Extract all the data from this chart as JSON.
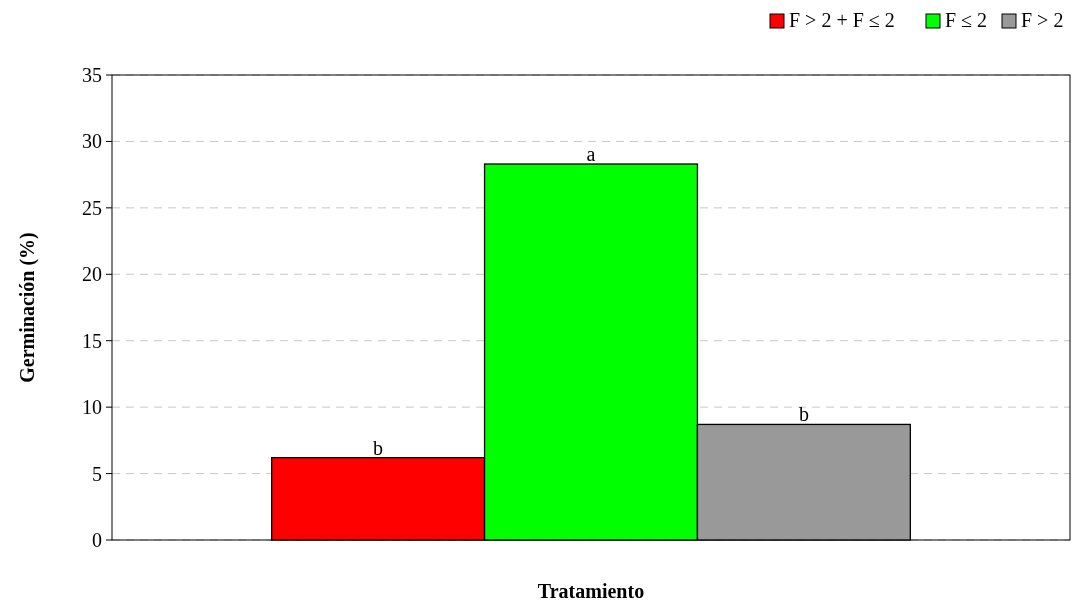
{
  "chart_data": {
    "type": "bar",
    "xlabel": "Tratamiento",
    "ylabel": "Germinación (%)",
    "categories": [
      null
    ],
    "series": [
      {
        "name": "F > 2 + F ≤ 2",
        "color": "#ff0000",
        "values": [
          6.2
        ],
        "value_labels": [
          "b"
        ]
      },
      {
        "name": "F ≤ 2",
        "color": "#00ff00",
        "values": [
          28.3
        ],
        "value_labels": [
          "a"
        ]
      },
      {
        "name": "F > 2",
        "color": "#999999",
        "values": [
          8.7
        ],
        "value_labels": [
          "b"
        ]
      }
    ],
    "ylim": [
      0,
      35
    ],
    "yticks": [
      0,
      5,
      10,
      15,
      20,
      25,
      30,
      35
    ],
    "grid": "y",
    "legend": "top right"
  }
}
